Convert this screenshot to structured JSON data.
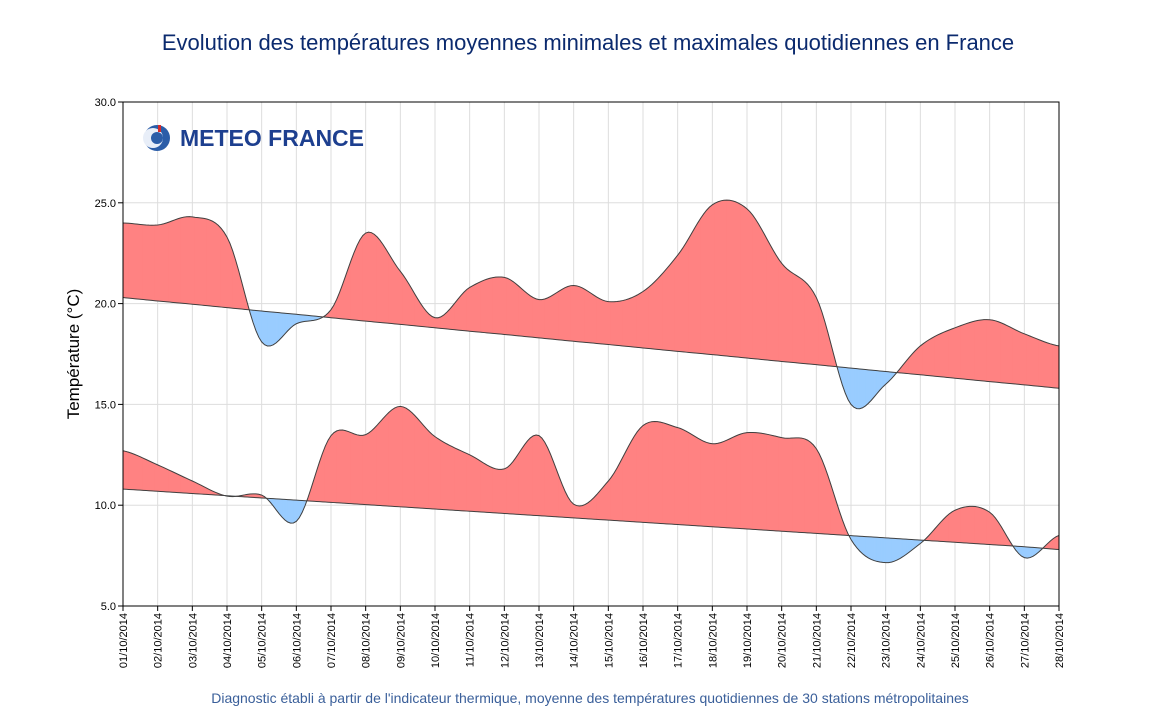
{
  "chart_data": {
    "type": "area",
    "title": "Evolution des températures moyennes minimales et maximales quotidiennes en France",
    "ylabel": "Température (°C)",
    "xlabel": "",
    "ylim": [
      5,
      30
    ],
    "yticks": [
      "5.0",
      "10.0",
      "15.0",
      "20.0",
      "25.0",
      "30.0"
    ],
    "grid": true,
    "categories": [
      "01/10/2014",
      "02/10/2014",
      "03/10/2014",
      "04/10/2014",
      "05/10/2014",
      "06/10/2014",
      "07/10/2014",
      "08/10/2014",
      "09/10/2014",
      "10/10/2014",
      "11/10/2014",
      "12/10/2014",
      "13/10/2014",
      "14/10/2014",
      "15/10/2014",
      "16/10/2014",
      "17/10/2014",
      "18/10/2014",
      "19/10/2014",
      "20/10/2014",
      "21/10/2014",
      "22/10/2014",
      "23/10/2014",
      "24/10/2014",
      "25/10/2014",
      "26/10/2014",
      "27/10/2014",
      "28/10/2014"
    ],
    "series": [
      {
        "name": "",
        "role": "max",
        "values": [
          24.0,
          23.9,
          24.3,
          23.3,
          18.1,
          19.0,
          19.7,
          23.5,
          21.6,
          19.3,
          20.8,
          21.3,
          20.2,
          20.9,
          20.1,
          20.6,
          22.4,
          24.9,
          24.7,
          22.0,
          20.3,
          15.0,
          16.0,
          17.9,
          18.8,
          19.2,
          18.5,
          17.9
        ]
      },
      {
        "name": "",
        "role": "max-normal",
        "values": [
          20.3,
          20.13,
          19.97,
          19.8,
          19.63,
          19.47,
          19.3,
          19.13,
          18.97,
          18.8,
          18.63,
          18.47,
          18.3,
          18.13,
          17.97,
          17.8,
          17.63,
          17.47,
          17.3,
          17.13,
          16.97,
          16.8,
          16.63,
          16.47,
          16.3,
          16.13,
          15.97,
          15.8
        ]
      },
      {
        "name": "",
        "role": "min",
        "values": [
          12.7,
          12.0,
          11.2,
          10.45,
          10.5,
          9.2,
          13.45,
          13.5,
          14.9,
          13.4,
          12.5,
          11.8,
          13.45,
          10.05,
          11.2,
          13.95,
          13.85,
          13.05,
          13.6,
          13.35,
          12.8,
          8.3,
          7.15,
          8.1,
          9.75,
          9.65,
          7.4,
          8.5
        ]
      },
      {
        "name": "",
        "role": "min-normal",
        "values": [
          10.8,
          10.69,
          10.58,
          10.47,
          10.36,
          10.25,
          10.14,
          10.03,
          9.92,
          9.81,
          9.7,
          9.59,
          9.48,
          9.37,
          9.26,
          9.15,
          9.04,
          8.93,
          8.82,
          8.71,
          8.6,
          8.49,
          8.38,
          8.27,
          8.16,
          8.05,
          7.94,
          7.8
        ]
      }
    ],
    "colors": {
      "above": "#ff8282",
      "below": "#99ccff",
      "line": "#404040",
      "grid": "#dddddd"
    }
  },
  "logo": {
    "text": "METEO FRANCE"
  },
  "footnote": "Diagnostic établi à partir de l'indicateur thermique, moyenne des températures quotidiennes de 30 stations métropolitaines"
}
